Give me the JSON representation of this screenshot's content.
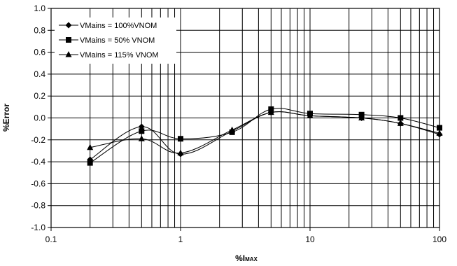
{
  "chart_data": {
    "type": "line",
    "xlabel": "%I",
    "xlabel_sub": "MAX",
    "ylabel": "%Error",
    "xscale": "log",
    "xlim": [
      0.1,
      100
    ],
    "ylim": [
      -1.0,
      1.0
    ],
    "grid": true,
    "legend_position": "top-left",
    "x_tick_labels": [
      "0.1",
      "1",
      "10",
      "100"
    ],
    "y_tick_labels": [
      "1.0",
      "0.8",
      "0.6",
      "0.4",
      "0.2",
      "0.0",
      "-0.2",
      "-0.4",
      "-0.6",
      "-0.8",
      "-1.0"
    ],
    "x": [
      0.2,
      0.5,
      1,
      2.5,
      5,
      10,
      25,
      50,
      100
    ],
    "series": [
      {
        "name": "VMains = 100%VNOM",
        "marker": "diamond",
        "values": [
          -0.38,
          -0.08,
          -0.33,
          -0.12,
          0.05,
          0.02,
          0.0,
          -0.05,
          -0.15
        ]
      },
      {
        "name": "VMains = 50% VNOM",
        "marker": "square",
        "values": [
          -0.41,
          -0.12,
          -0.19,
          -0.13,
          0.08,
          0.04,
          0.03,
          0.0,
          -0.09
        ]
      },
      {
        "name": "VMains = 115% VNOM",
        "marker": "triangle",
        "values": [
          -0.27,
          -0.19,
          -0.32,
          -0.11,
          0.05,
          0.02,
          0.0,
          -0.05,
          -0.14
        ]
      }
    ]
  }
}
